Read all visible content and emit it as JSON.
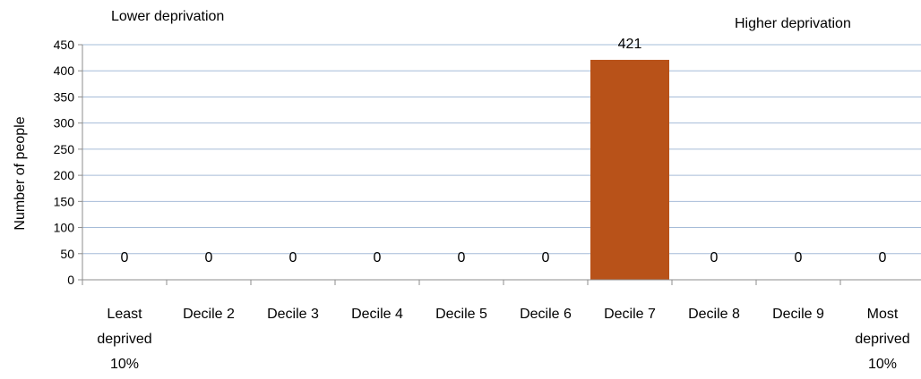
{
  "chart_data": {
    "type": "bar",
    "categories": [
      [
        "Least",
        "deprived",
        "10%"
      ],
      [
        "Decile 2"
      ],
      [
        "Decile 3"
      ],
      [
        "Decile 4"
      ],
      [
        "Decile 5"
      ],
      [
        "Decile 6"
      ],
      [
        "Decile 7"
      ],
      [
        "Decile 8"
      ],
      [
        "Decile 9"
      ],
      [
        "Most",
        "deprived",
        "10%"
      ]
    ],
    "values": [
      0,
      0,
      0,
      0,
      0,
      0,
      421,
      0,
      0,
      0
    ],
    "data_labels": [
      "0",
      "0",
      "0",
      "0",
      "0",
      "0",
      "421",
      "0",
      "0",
      "0"
    ],
    "ylabel": "Number of people",
    "xlabel": "",
    "ylim": [
      0,
      450
    ],
    "yticks": [
      0,
      50,
      100,
      150,
      200,
      250,
      300,
      350,
      400,
      450
    ],
    "grid": true,
    "annotations": {
      "left": "Lower deprivation",
      "right": "Higher deprivation"
    },
    "colors": {
      "bar": "#b85219",
      "grid": "#a6bcd8",
      "axis": "#8c8c8c"
    }
  }
}
